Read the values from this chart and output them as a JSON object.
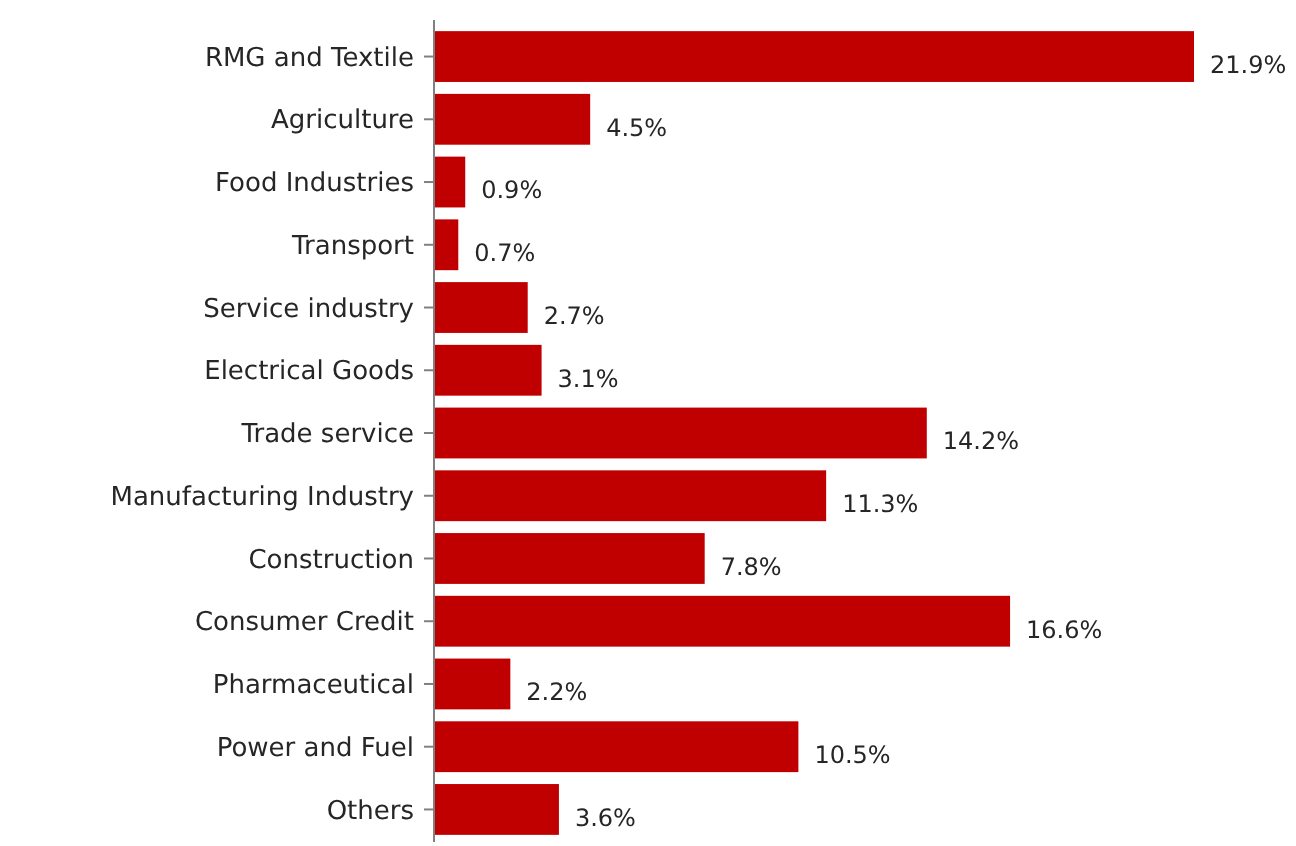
{
  "chart_data": {
    "type": "bar",
    "orientation": "horizontal",
    "categories": [
      "RMG and Textile",
      "Agriculture",
      "Food Industries",
      "Transport",
      "Service industry",
      "Electrical Goods",
      "Trade service",
      "Manufacturing Industry",
      "Construction",
      "Consumer Credit",
      "Pharmaceutical",
      "Power and Fuel",
      "Others"
    ],
    "values": [
      21.9,
      4.5,
      0.9,
      0.7,
      2.7,
      3.1,
      14.2,
      11.3,
      7.8,
      16.6,
      2.2,
      10.5,
      3.6
    ],
    "value_labels": [
      "21.9%",
      "4.5%",
      "0.9%",
      "0.7%",
      "2.7%",
      "3.1%",
      "14.2%",
      "11.3%",
      "7.8%",
      "16.6%",
      "2.2%",
      "10.5%",
      "3.6%"
    ],
    "color": "#c00000"
  }
}
